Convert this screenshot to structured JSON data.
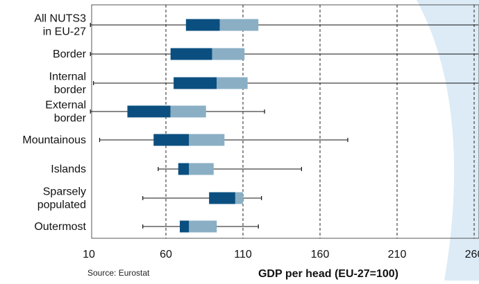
{
  "chart_data": {
    "type": "box",
    "orientation": "horizontal",
    "title": "",
    "xlabel": "GDP per head (EU-27=100)",
    "ylabel": "",
    "xlim": [
      10,
      270
    ],
    "xticks": [
      10,
      60,
      110,
      160,
      210,
      260
    ],
    "grid": "vertical-dashed",
    "source": "Source: Eurostat",
    "colors": {
      "lower_box": "#0b4f80",
      "upper_box": "#8aafc5",
      "whisker": "#111111",
      "grid": "#222222",
      "frame": "#555555",
      "background_swoosh": "#dcebf6"
    },
    "categories": [
      {
        "label_lines": [
          "All NUTS3",
          "in EU-27"
        ],
        "min": 11,
        "q1": 73,
        "median": 95,
        "q3": 120,
        "max": 272
      },
      {
        "label_lines": [
          "Border"
        ],
        "min": 11,
        "q1": 63,
        "median": 90,
        "q3": 111,
        "max": 269
      },
      {
        "label_lines": [
          "Internal",
          "border"
        ],
        "min": 13,
        "q1": 65,
        "median": 93,
        "q3": 113,
        "max": 270
      },
      {
        "label_lines": [
          "External",
          "border"
        ],
        "min": 11,
        "q1": 35,
        "median": 63,
        "q3": 86,
        "max": 124
      },
      {
        "label_lines": [
          "Mountainous"
        ],
        "min": 17,
        "q1": 52,
        "median": 75,
        "q3": 98,
        "max": 178
      },
      {
        "label_lines": [
          "Islands"
        ],
        "min": 55,
        "q1": 68,
        "median": 75,
        "q3": 91,
        "max": 148
      },
      {
        "label_lines": [
          "Sparsely",
          "populated"
        ],
        "min": 45,
        "q1": 88,
        "median": 105,
        "q3": 110,
        "max": 122
      },
      {
        "label_lines": [
          "Outermost"
        ],
        "min": 45,
        "q1": 69,
        "median": 75,
        "q3": 93,
        "max": 120
      }
    ]
  }
}
